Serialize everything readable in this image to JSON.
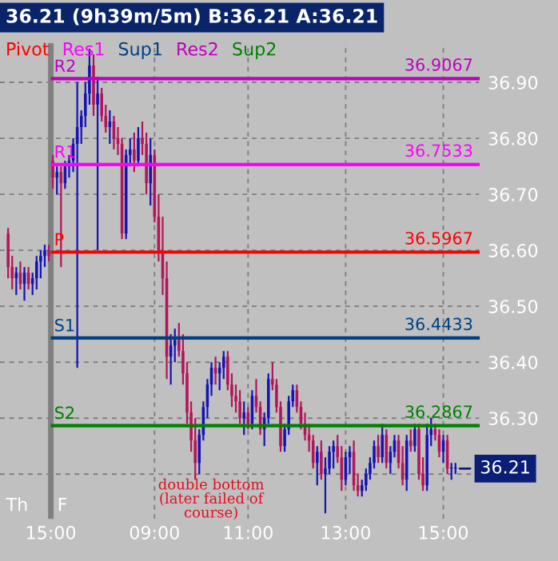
{
  "chart_data": {
    "type": "candlestick",
    "title": "36.21 (9h39m/5m) B:36.21 A:36.21",
    "categories": [
      null,
      null,
      null,
      null,
      null,
      null,
      null,
      null,
      null,
      null,
      null,
      null,
      null,
      null,
      null,
      null,
      null,
      null,
      null,
      null,
      null,
      null,
      null,
      null,
      null,
      null,
      null,
      null,
      null,
      null,
      null,
      null,
      null,
      null,
      null,
      null,
      null,
      null,
      null,
      null,
      null,
      null,
      null,
      null,
      null,
      null,
      null,
      null,
      null,
      null,
      null,
      null,
      null,
      null,
      null,
      null,
      null,
      null,
      null,
      null,
      null,
      null,
      null,
      null,
      null,
      null,
      null,
      null,
      null,
      null,
      null,
      null,
      null,
      null,
      null,
      null,
      null,
      null,
      null,
      null,
      null,
      null,
      null,
      null,
      null,
      null,
      null,
      null,
      null,
      null,
      null,
      null,
      null,
      null,
      null,
      null,
      null,
      null,
      null,
      null,
      null,
      null,
      null,
      null,
      null,
      null,
      null,
      null,
      null,
      null,
      null
    ],
    "ohlc": [
      [
        36.63,
        36.64,
        36.55,
        36.57
      ],
      [
        36.57,
        36.59,
        36.53,
        36.55
      ],
      [
        36.55,
        36.57,
        36.52,
        36.56
      ],
      [
        36.56,
        36.58,
        36.53,
        36.54
      ],
      [
        36.54,
        36.57,
        36.51,
        36.56
      ],
      [
        36.56,
        36.57,
        36.53,
        36.54
      ],
      [
        36.54,
        36.56,
        36.52,
        36.55
      ],
      [
        36.55,
        36.59,
        36.53,
        36.58
      ],
      [
        36.58,
        36.6,
        36.55,
        36.59
      ],
      [
        36.59,
        36.61,
        36.57,
        36.6
      ],
      [
        36.6,
        36.61,
        36.58,
        36.59
      ],
      [
        36.76,
        36.77,
        36.71,
        36.73
      ],
      [
        36.73,
        36.75,
        36.7,
        36.74
      ],
      [
        36.74,
        36.75,
        36.57,
        36.72
      ],
      [
        36.72,
        36.76,
        36.71,
        36.75
      ],
      [
        36.75,
        36.77,
        36.73,
        36.76
      ],
      [
        36.76,
        36.8,
        36.74,
        36.79
      ],
      [
        36.79,
        36.9,
        36.39,
        36.82
      ],
      [
        36.82,
        36.85,
        36.79,
        36.84
      ],
      [
        36.84,
        36.9,
        36.82,
        36.88
      ],
      [
        36.88,
        36.96,
        36.86,
        36.93
      ],
      [
        36.93,
        36.95,
        36.84,
        36.86
      ],
      [
        36.86,
        36.91,
        36.6,
        36.88
      ],
      [
        36.88,
        36.89,
        36.83,
        36.84
      ],
      [
        36.84,
        36.86,
        36.81,
        36.82
      ],
      [
        36.82,
        36.85,
        36.79,
        36.83
      ],
      [
        36.83,
        36.84,
        36.78,
        36.8
      ],
      [
        36.8,
        36.82,
        36.77,
        36.79
      ],
      [
        36.79,
        36.8,
        36.62,
        36.63
      ],
      [
        36.63,
        36.78,
        36.62,
        36.77
      ],
      [
        36.77,
        36.8,
        36.75,
        36.78
      ],
      [
        36.78,
        36.81,
        36.74,
        36.76
      ],
      [
        36.76,
        36.82,
        36.75,
        36.8
      ],
      [
        36.8,
        36.83,
        36.77,
        36.79
      ],
      [
        36.79,
        36.81,
        36.7,
        36.72
      ],
      [
        36.72,
        36.8,
        36.68,
        36.77
      ],
      [
        36.77,
        36.78,
        36.65,
        36.66
      ],
      [
        36.66,
        36.7,
        36.58,
        36.6
      ],
      [
        36.6,
        36.66,
        36.52,
        36.55
      ],
      [
        36.55,
        36.58,
        36.37,
        36.41
      ],
      [
        36.41,
        36.45,
        36.36,
        36.43
      ],
      [
        36.43,
        36.46,
        36.4,
        36.44
      ],
      [
        36.44,
        36.47,
        36.41,
        36.42
      ],
      [
        36.42,
        36.45,
        36.36,
        36.38
      ],
      [
        36.38,
        36.4,
        36.29,
        36.31
      ],
      [
        36.31,
        36.33,
        36.24,
        36.26
      ],
      [
        36.26,
        36.3,
        36.19,
        36.22
      ],
      [
        36.22,
        36.28,
        36.2,
        36.27
      ],
      [
        36.27,
        36.33,
        36.26,
        36.32
      ],
      [
        36.32,
        36.37,
        36.3,
        36.36
      ],
      [
        36.36,
        36.4,
        36.34,
        36.39
      ],
      [
        36.39,
        36.41,
        36.36,
        36.38
      ],
      [
        36.38,
        36.4,
        36.35,
        36.39
      ],
      [
        36.39,
        36.42,
        36.37,
        36.41
      ],
      [
        36.41,
        36.42,
        36.35,
        36.36
      ],
      [
        36.36,
        36.38,
        36.32,
        36.34
      ],
      [
        36.34,
        36.36,
        36.31,
        36.33
      ],
      [
        36.33,
        36.35,
        36.29,
        36.3
      ],
      [
        36.3,
        36.33,
        36.27,
        36.31
      ],
      [
        36.31,
        36.32,
        36.28,
        36.29
      ],
      [
        36.29,
        36.35,
        36.28,
        36.34
      ],
      [
        36.34,
        36.37,
        36.31,
        36.32
      ],
      [
        36.32,
        36.33,
        36.27,
        36.28
      ],
      [
        36.28,
        36.31,
        36.25,
        36.3
      ],
      [
        36.3,
        36.38,
        36.29,
        36.37
      ],
      [
        36.37,
        36.4,
        36.35,
        36.36
      ],
      [
        36.36,
        36.37,
        36.31,
        36.32
      ],
      [
        36.32,
        36.33,
        36.24,
        36.25
      ],
      [
        36.25,
        36.29,
        36.24,
        36.28
      ],
      [
        36.28,
        36.34,
        36.27,
        36.33
      ],
      [
        36.33,
        36.36,
        36.32,
        36.35
      ],
      [
        36.35,
        36.36,
        36.31,
        36.32
      ],
      [
        36.32,
        36.33,
        36.28,
        36.29
      ],
      [
        36.29,
        36.31,
        36.26,
        36.27
      ],
      [
        36.27,
        36.29,
        36.24,
        36.26
      ],
      [
        36.26,
        36.27,
        36.21,
        36.22
      ],
      [
        36.22,
        36.25,
        36.18,
        36.24
      ],
      [
        36.24,
        36.26,
        36.19,
        36.2
      ],
      [
        36.2,
        36.23,
        36.13,
        36.21
      ],
      [
        36.21,
        36.25,
        36.2,
        36.24
      ],
      [
        36.24,
        36.26,
        36.21,
        36.25
      ],
      [
        36.25,
        36.27,
        36.22,
        36.23
      ],
      [
        36.23,
        36.25,
        36.17,
        36.19
      ],
      [
        36.19,
        36.24,
        36.18,
        36.23
      ],
      [
        36.23,
        36.25,
        36.2,
        36.24
      ],
      [
        36.24,
        36.26,
        36.17,
        36.18
      ],
      [
        36.18,
        36.2,
        36.16,
        36.17
      ],
      [
        36.17,
        36.19,
        36.16,
        36.18
      ],
      [
        36.18,
        36.21,
        36.17,
        36.2
      ],
      [
        36.2,
        36.23,
        36.19,
        36.22
      ],
      [
        36.22,
        36.26,
        36.21,
        36.25
      ],
      [
        36.25,
        36.27,
        36.22,
        36.23
      ],
      [
        36.23,
        36.29,
        36.22,
        36.27
      ],
      [
        36.27,
        36.28,
        36.21,
        36.22
      ],
      [
        36.22,
        36.25,
        36.2,
        36.24
      ],
      [
        36.24,
        36.27,
        36.23,
        36.26
      ],
      [
        36.26,
        36.27,
        36.21,
        36.22
      ],
      [
        36.22,
        36.25,
        36.18,
        36.19
      ],
      [
        36.19,
        36.27,
        36.17,
        36.26
      ],
      [
        36.26,
        36.28,
        36.24,
        36.25
      ],
      [
        36.25,
        36.29,
        36.24,
        36.28
      ],
      [
        36.28,
        36.29,
        36.19,
        36.2
      ],
      [
        36.2,
        36.23,
        36.17,
        36.18
      ],
      [
        36.18,
        36.29,
        36.17,
        36.27
      ],
      [
        36.27,
        36.3,
        36.25,
        36.28
      ],
      [
        36.28,
        36.29,
        36.26,
        36.27
      ],
      [
        36.27,
        36.28,
        36.23,
        36.24
      ],
      [
        36.24,
        36.27,
        36.22,
        36.26
      ],
      [
        36.26,
        36.27,
        36.2,
        36.21
      ],
      [
        36.21,
        36.22,
        36.19,
        36.21
      ],
      [
        36.21,
        36.22,
        36.2,
        36.21
      ]
    ],
    "colors": [
      "#b4145a",
      "#b4145a",
      "#1414b4",
      "#b4145a",
      "#1414b4",
      "#b4145a",
      "#1414b4",
      "#1414b4",
      "#1414b4",
      "#1414b4",
      "#b4145a",
      "#b4145a",
      "#1414b4",
      "#b4145a",
      "#1414b4",
      "#1414b4",
      "#1414b4",
      "#1414b4",
      "#1414b4",
      "#1414b4",
      "#1414b4",
      "#b4145a",
      "#1414b4",
      "#b4145a",
      "#b4145a",
      "#1414b4",
      "#b4145a",
      "#b4145a",
      "#b4145a",
      "#1414b4",
      "#1414b4",
      "#b4145a",
      "#1414b4",
      "#b4145a",
      "#b4145a",
      "#1414b4",
      "#b4145a",
      "#b4145a",
      "#b4145a",
      "#b4145a",
      "#1414b4",
      "#1414b4",
      "#b4145a",
      "#b4145a",
      "#b4145a",
      "#b4145a",
      "#b4145a",
      "#1414b4",
      "#1414b4",
      "#1414b4",
      "#1414b4",
      "#b4145a",
      "#1414b4",
      "#1414b4",
      "#b4145a",
      "#b4145a",
      "#b4145a",
      "#b4145a",
      "#1414b4",
      "#b4145a",
      "#1414b4",
      "#b4145a",
      "#b4145a",
      "#1414b4",
      "#1414b4",
      "#b4145a",
      "#b4145a",
      "#b4145a",
      "#1414b4",
      "#1414b4",
      "#1414b4",
      "#b4145a",
      "#b4145a",
      "#b4145a",
      "#b4145a",
      "#b4145a",
      "#1414b4",
      "#b4145a",
      "#1414b4",
      "#1414b4",
      "#1414b4",
      "#b4145a",
      "#b4145a",
      "#1414b4",
      "#1414b4",
      "#b4145a",
      "#b4145a",
      "#1414b4",
      "#1414b4",
      "#1414b4",
      "#1414b4",
      "#b4145a",
      "#1414b4",
      "#b4145a",
      "#1414b4",
      "#1414b4",
      "#b4145a",
      "#b4145a",
      "#1414b4",
      "#b4145a",
      "#1414b4",
      "#b4145a",
      "#b4145a",
      "#1414b4",
      "#1414b4",
      "#b4145a",
      "#b4145a",
      "#1414b4",
      "#b4145a",
      "#1414b4",
      "#1414b4"
    ],
    "ylim": [
      36.12,
      36.97
    ],
    "yticks": [
      {
        "value": 36.2,
        "label": null
      },
      {
        "value": 36.3,
        "label": "36.30"
      },
      {
        "value": 36.4,
        "label": "36.40"
      },
      {
        "value": 36.5,
        "label": "36.50"
      },
      {
        "value": 36.6,
        "label": "36.60"
      },
      {
        "value": 36.7,
        "label": "36.70"
      },
      {
        "value": 36.8,
        "label": "36.80"
      },
      {
        "value": 36.9,
        "label": "36.90"
      }
    ],
    "grid": true,
    "ref_lines": [
      {
        "axis": "y",
        "value": 36.5967,
        "label": "P",
        "color": "#ff0000"
      },
      {
        "axis": "y",
        "value": 36.7533,
        "label": "R1",
        "color": "#ff00ff"
      },
      {
        "axis": "y",
        "value": 36.4433,
        "label": "S1",
        "color": "#004080"
      },
      {
        "axis": "y",
        "value": 36.9067,
        "label": "R2",
        "color": "#c000c0"
      },
      {
        "axis": "y",
        "value": 36.2867,
        "label": "S2",
        "color": "#008000"
      }
    ],
    "annotations": [
      "Pivot",
      "Res1",
      "Sup1",
      "Res2",
      "Sup2",
      "Th",
      "F",
      "15:00",
      "09:00",
      "11:00",
      "13:00",
      "15:00",
      "double bottom\n(later failed of\ncourse)",
      {
        "text": "36.5967",
        "y": 36.5967
      },
      {
        "text": "36.7533",
        "y": 36.7533
      },
      {
        "text": "36.4433",
        "y": 36.4433
      },
      {
        "text": "36.9067",
        "y": 36.9067
      },
      {
        "text": "36.2867",
        "y": 36.2867
      },
      "36.21"
    ]
  }
}
